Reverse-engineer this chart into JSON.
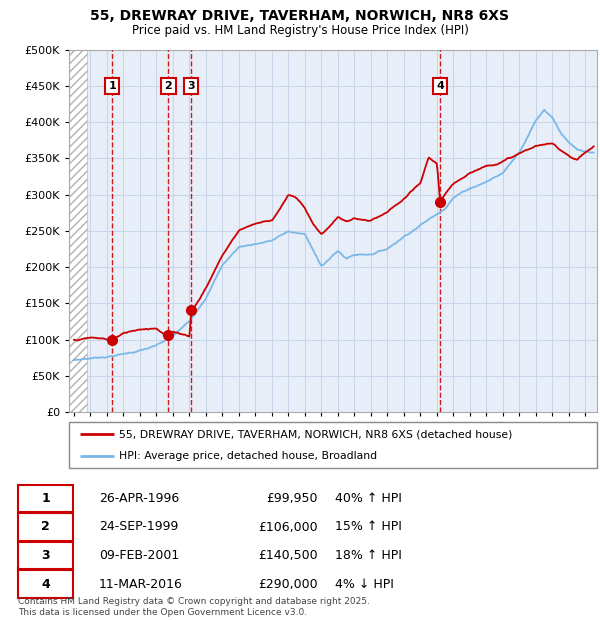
{
  "title_line1": "55, DREWRAY DRIVE, TAVERHAM, NORWICH, NR8 6XS",
  "title_line2": "Price paid vs. HM Land Registry's House Price Index (HPI)",
  "legend_label1": "55, DREWRAY DRIVE, TAVERHAM, NORWICH, NR8 6XS (detached house)",
  "legend_label2": "HPI: Average price, detached house, Broadland",
  "footer": "Contains HM Land Registry data © Crown copyright and database right 2025.\nThis data is licensed under the Open Government Licence v3.0.",
  "sales": [
    {
      "num": 1,
      "date": "26-APR-1996",
      "price": 99950,
      "pct": "40%",
      "dir": "↑",
      "x_year": 1996.32
    },
    {
      "num": 2,
      "date": "24-SEP-1999",
      "price": 106000,
      "pct": "15%",
      "dir": "↑",
      "x_year": 1999.73
    },
    {
      "num": 3,
      "date": "09-FEB-2001",
      "price": 140500,
      "pct": "18%",
      "dir": "↑",
      "x_year": 2001.11
    },
    {
      "num": 4,
      "date": "11-MAR-2016",
      "price": 290000,
      "pct": "4%",
      "dir": "↓",
      "x_year": 2016.19
    }
  ],
  "hpi_color": "#7ab8e8",
  "price_color": "#cc0000",
  "vline_color": "#cc0000",
  "grid_color": "#c8d4e8",
  "bg_color": "#e8eef8",
  "ylim": [
    0,
    500000
  ],
  "yticks": [
    0,
    50000,
    100000,
    150000,
    200000,
    250000,
    300000,
    350000,
    400000,
    450000,
    500000
  ],
  "xlim_start": 1993.7,
  "xlim_end": 2025.7,
  "hatch_end_year": 1994.8,
  "hpi_anchors": [
    [
      1994.0,
      72000
    ],
    [
      1995.0,
      75000
    ],
    [
      1996.0,
      78000
    ],
    [
      1997.0,
      82000
    ],
    [
      1998.0,
      87000
    ],
    [
      1999.0,
      93000
    ],
    [
      2000.0,
      105000
    ],
    [
      2001.0,
      125000
    ],
    [
      2002.0,
      160000
    ],
    [
      2003.0,
      205000
    ],
    [
      2004.0,
      230000
    ],
    [
      2005.0,
      235000
    ],
    [
      2006.0,
      240000
    ],
    [
      2007.0,
      252000
    ],
    [
      2008.0,
      248000
    ],
    [
      2008.5,
      225000
    ],
    [
      2009.0,
      205000
    ],
    [
      2009.5,
      215000
    ],
    [
      2010.0,
      225000
    ],
    [
      2010.5,
      215000
    ],
    [
      2011.0,
      220000
    ],
    [
      2012.0,
      222000
    ],
    [
      2013.0,
      230000
    ],
    [
      2014.0,
      248000
    ],
    [
      2015.0,
      265000
    ],
    [
      2016.0,
      280000
    ],
    [
      2016.5,
      290000
    ],
    [
      2017.0,
      305000
    ],
    [
      2018.0,
      318000
    ],
    [
      2019.0,
      328000
    ],
    [
      2020.0,
      340000
    ],
    [
      2021.0,
      370000
    ],
    [
      2022.0,
      415000
    ],
    [
      2022.5,
      430000
    ],
    [
      2023.0,
      420000
    ],
    [
      2023.5,
      400000
    ],
    [
      2024.0,
      385000
    ],
    [
      2024.5,
      375000
    ],
    [
      2025.0,
      370000
    ],
    [
      2025.5,
      368000
    ]
  ],
  "pp_anchors": [
    [
      1994.0,
      100000
    ],
    [
      1995.0,
      103000
    ],
    [
      1996.0,
      100500
    ],
    [
      1996.32,
      99950
    ],
    [
      1997.0,
      108000
    ],
    [
      1998.0,
      115000
    ],
    [
      1999.0,
      118000
    ],
    [
      1999.73,
      106000
    ],
    [
      2000.0,
      112000
    ],
    [
      2001.0,
      108000
    ],
    [
      2001.11,
      140500
    ],
    [
      2002.0,
      175000
    ],
    [
      2003.0,
      220000
    ],
    [
      2004.0,
      255000
    ],
    [
      2005.0,
      265000
    ],
    [
      2006.0,
      270000
    ],
    [
      2007.0,
      305000
    ],
    [
      2007.5,
      300000
    ],
    [
      2008.0,
      285000
    ],
    [
      2008.5,
      265000
    ],
    [
      2009.0,
      250000
    ],
    [
      2009.5,
      262000
    ],
    [
      2010.0,
      275000
    ],
    [
      2010.5,
      268000
    ],
    [
      2011.0,
      272000
    ],
    [
      2012.0,
      268000
    ],
    [
      2013.0,
      278000
    ],
    [
      2014.0,
      295000
    ],
    [
      2015.0,
      315000
    ],
    [
      2015.5,
      350000
    ],
    [
      2016.0,
      342000
    ],
    [
      2016.19,
      290000
    ],
    [
      2016.5,
      300000
    ],
    [
      2017.0,
      312000
    ],
    [
      2018.0,
      330000
    ],
    [
      2019.0,
      340000
    ],
    [
      2020.0,
      348000
    ],
    [
      2021.0,
      358000
    ],
    [
      2022.0,
      368000
    ],
    [
      2023.0,
      370000
    ],
    [
      2023.5,
      362000
    ],
    [
      2024.0,
      355000
    ],
    [
      2024.5,
      350000
    ],
    [
      2025.0,
      360000
    ],
    [
      2025.5,
      368000
    ]
  ]
}
